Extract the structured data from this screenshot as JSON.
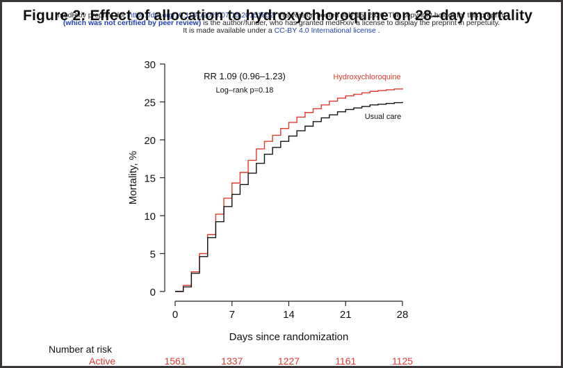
{
  "figure_title": "Figure 2: Effect of allocation to hydroxychloroquine on 28–day mortality",
  "preprint": {
    "line1_a": "medRxiv preprint doi: ",
    "line1_doi": "https://doi.org/10.1101/2020.07.15.20151852",
    "line1_b": "; this version posted July 15, 2020. The copyright holder for this preprint",
    "line2_a": "(which was not certified by peer review)",
    "line2_b": " is the author/funder, who has granted medRxiv a license to display the preprint in perpetuity.",
    "line3_a": "It is made available under a ",
    "line3_license": "CC-BY 4.0 International license",
    "line3_b": " ."
  },
  "chart_data": {
    "type": "line",
    "step": true,
    "xlabel": "Days since randomization",
    "ylabel": "Mortality, %",
    "xlim": [
      0,
      28
    ],
    "ylim": [
      0,
      30
    ],
    "x_ticks": [
      0,
      7,
      14,
      21,
      28
    ],
    "y_ticks": [
      0,
      5,
      10,
      15,
      20,
      25,
      30
    ],
    "grid": false,
    "annotations": {
      "rr": "RR 1.09 (0.96–1.23)",
      "logrank": "Log–rank p=0.18"
    },
    "series": [
      {
        "name": "Hydroxychloroquine",
        "color": "#e0392e",
        "x": [
          0,
          1,
          2,
          3,
          4,
          5,
          6,
          7,
          8,
          9,
          10,
          11,
          12,
          13,
          14,
          15,
          16,
          17,
          18,
          19,
          20,
          21,
          22,
          23,
          24,
          25,
          26,
          27,
          28
        ],
        "y": [
          0,
          0.8,
          2.6,
          5.0,
          7.5,
          10.2,
          12.3,
          14.3,
          15.7,
          17.3,
          18.8,
          19.8,
          20.6,
          21.5,
          22.3,
          23.0,
          23.6,
          24.1,
          24.6,
          25.1,
          25.5,
          25.8,
          26.0,
          26.2,
          26.4,
          26.5,
          26.6,
          26.7,
          26.8
        ]
      },
      {
        "name": "Usual care",
        "color": "#111111",
        "x": [
          0,
          1,
          2,
          3,
          4,
          5,
          6,
          7,
          8,
          9,
          10,
          11,
          12,
          13,
          14,
          15,
          16,
          17,
          18,
          19,
          20,
          21,
          22,
          23,
          24,
          25,
          26,
          27,
          28
        ],
        "y": [
          0,
          0.6,
          2.4,
          4.6,
          7.1,
          9.2,
          11.2,
          12.8,
          14.1,
          15.6,
          16.9,
          18.1,
          19.0,
          19.8,
          20.5,
          21.2,
          21.8,
          22.4,
          22.9,
          23.3,
          23.7,
          24.0,
          24.2,
          24.4,
          24.6,
          24.7,
          24.8,
          24.9,
          25.0
        ]
      }
    ],
    "number_at_risk": {
      "header": "Number at risk",
      "group": "Active",
      "days": [
        0,
        7,
        14,
        21,
        28
      ],
      "values": [
        1561,
        1337,
        1227,
        1161,
        1125
      ]
    }
  }
}
